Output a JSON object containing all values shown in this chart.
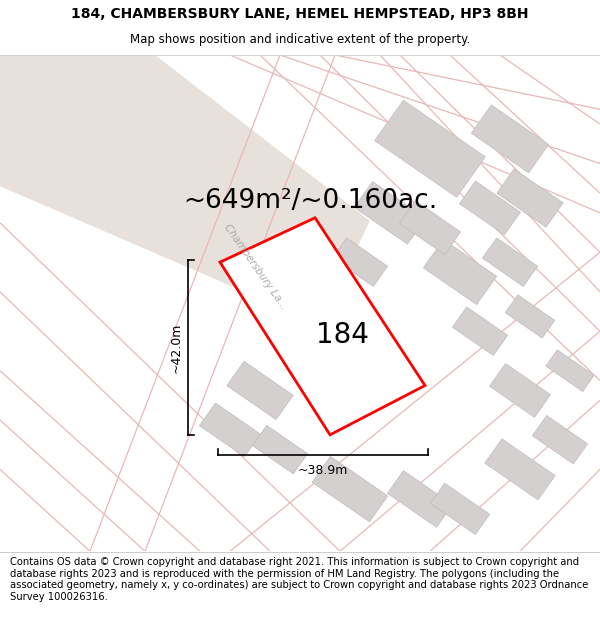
{
  "title_line1": "184, CHAMBERSBURY LANE, HEMEL HEMPSTEAD, HP3 8BH",
  "title_line2": "Map shows position and indicative extent of the property.",
  "area_text": "~649m²/~0.160ac.",
  "property_number": "184",
  "dim_height": "~42.0m",
  "dim_width": "~38.9m",
  "road_label": "Chambersbury La...",
  "footer_text": "Contains OS data © Crown copyright and database right 2021. This information is subject to Crown copyright and database rights 2023 and is reproduced with the permission of HM Land Registry. The polygons (including the associated geometry, namely x, y co-ordinates) are subject to Crown copyright and database rights 2023 Ordnance Survey 100026316.",
  "bg_color": "#f7f3f2",
  "road_line_color": "#e8b8b8",
  "boundary_line_color": "#c8a0a0",
  "building_fill": "#d4d0d0",
  "building_edge": "#c0bcbc",
  "red_poly_color": "#ff0000",
  "corner_fill": "#e8e0da",
  "road_strip_color": "#f0e8e8",
  "title_fontsize": 10,
  "subtitle_fontsize": 8.5,
  "area_fontsize": 19,
  "number_fontsize": 20,
  "dim_fontsize": 9,
  "road_label_fontsize": 7.5,
  "footer_fontsize": 7.2
}
